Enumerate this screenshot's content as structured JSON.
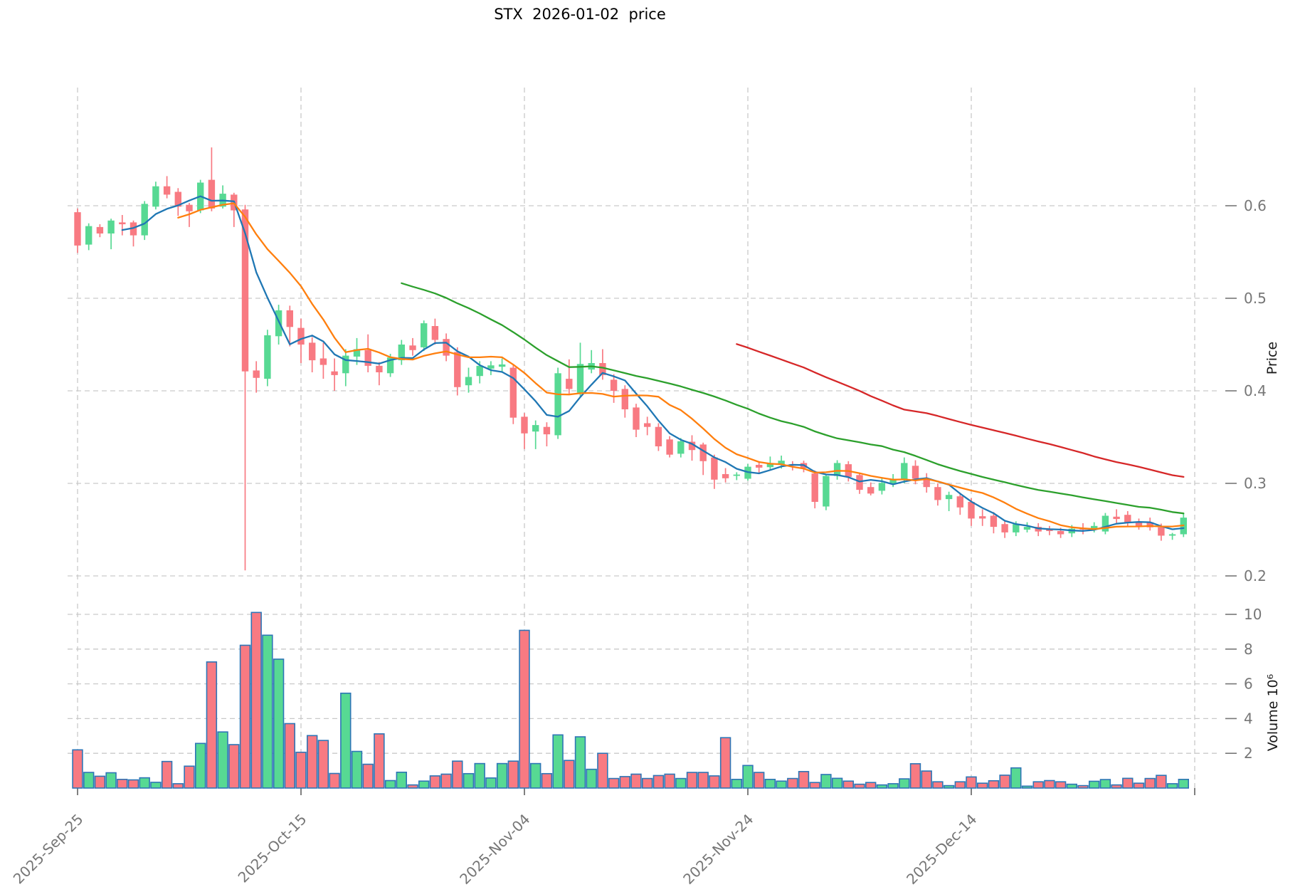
{
  "title": "STX  2026-01-02  price",
  "axes": {
    "price": {
      "label": "Price",
      "ticks": [
        0.2,
        0.3,
        0.4,
        0.5,
        0.6
      ]
    },
    "volume": {
      "label": "Volume 10⁶",
      "ticks": [
        2,
        4,
        6,
        8,
        10
      ]
    },
    "x": {
      "ticks": [
        {
          "index": 0,
          "label": "2025-Sep-25"
        },
        {
          "index": 20,
          "label": "2025-Oct-15"
        },
        {
          "index": 40,
          "label": "2025-Nov-04"
        },
        {
          "index": 60,
          "label": "2025-Nov-24"
        },
        {
          "index": 80,
          "label": "2025-Dec-14"
        },
        {
          "index": 100,
          "label": ""
        }
      ]
    }
  },
  "colors": {
    "background": "#ffffff",
    "candle_up": "#57d993",
    "candle_down": "#f87a82",
    "volume_edge": "#2e75b6",
    "grid": "#c9c9c9",
    "tick_label": "#767676",
    "tick_mark": "#555555",
    "axis_label": "#1a1a1a",
    "title": "#000000",
    "ma_colors": [
      "#1f77b4",
      "#ff7f0e",
      "#2ca02c",
      "#d62728"
    ]
  },
  "chart_data": {
    "type": "candlestick",
    "symbol": "STX",
    "title": "STX  2026-01-02  price",
    "ylabel": "Price",
    "y2label": "Volume 10⁶",
    "volume_unit": 1000000,
    "grid": true,
    "price_ylim": [
      0.185,
      0.69
    ],
    "volume_ylim": [
      0,
      10.6
    ],
    "moving_averages": [
      {
        "window": 5,
        "color": "#1f77b4"
      },
      {
        "window": 10,
        "color": "#ff7f0e"
      },
      {
        "window": 30,
        "color": "#2ca02c"
      },
      {
        "window": 60,
        "color": "#d62728"
      }
    ],
    "dates": [
      "2025-09-25",
      "2025-09-26",
      "2025-09-27",
      "2025-09-28",
      "2025-09-29",
      "2025-09-30",
      "2025-10-01",
      "2025-10-02",
      "2025-10-03",
      "2025-10-04",
      "2025-10-05",
      "2025-10-06",
      "2025-10-07",
      "2025-10-08",
      "2025-10-09",
      "2025-10-10",
      "2025-10-11",
      "2025-10-12",
      "2025-10-13",
      "2025-10-14",
      "2025-10-15",
      "2025-10-16",
      "2025-10-17",
      "2025-10-18",
      "2025-10-19",
      "2025-10-20",
      "2025-10-21",
      "2025-10-22",
      "2025-10-23",
      "2025-10-24",
      "2025-10-25",
      "2025-10-26",
      "2025-10-27",
      "2025-10-28",
      "2025-10-29",
      "2025-10-30",
      "2025-10-31",
      "2025-11-01",
      "2025-11-02",
      "2025-11-03",
      "2025-11-04",
      "2025-11-05",
      "2025-11-06",
      "2025-11-07",
      "2025-11-08",
      "2025-11-09",
      "2025-11-10",
      "2025-11-11",
      "2025-11-12",
      "2025-11-13",
      "2025-11-14",
      "2025-11-15",
      "2025-11-16",
      "2025-11-17",
      "2025-11-18",
      "2025-11-19",
      "2025-11-20",
      "2025-11-21",
      "2025-11-22",
      "2025-11-23",
      "2025-11-24",
      "2025-11-25",
      "2025-11-26",
      "2025-11-27",
      "2025-11-28",
      "2025-11-29",
      "2025-11-30",
      "2025-12-01",
      "2025-12-02",
      "2025-12-03",
      "2025-12-04",
      "2025-12-05",
      "2025-12-06",
      "2025-12-07",
      "2025-12-08",
      "2025-12-09",
      "2025-12-10",
      "2025-12-11",
      "2025-12-12",
      "2025-12-13",
      "2025-12-14",
      "2025-12-15",
      "2025-12-16",
      "2025-12-17",
      "2025-12-18",
      "2025-12-19",
      "2025-12-20",
      "2025-12-21",
      "2025-12-22",
      "2025-12-23",
      "2025-12-24",
      "2025-12-25",
      "2025-12-26",
      "2025-12-27",
      "2025-12-28",
      "2025-12-29",
      "2025-12-30",
      "2025-12-31",
      "2026-01-01",
      "2026-01-02"
    ],
    "open": [
      0.593,
      0.558,
      0.577,
      0.57,
      0.582,
      0.582,
      0.568,
      0.599,
      0.621,
      0.615,
      0.601,
      0.595,
      0.628,
      0.599,
      0.612,
      0.596,
      0.422,
      0.413,
      0.459,
      0.487,
      0.468,
      0.452,
      0.435,
      0.421,
      0.419,
      0.437,
      0.444,
      0.427,
      0.419,
      0.433,
      0.449,
      0.447,
      0.47,
      0.456,
      0.442,
      0.406,
      0.416,
      0.424,
      0.426,
      0.425,
      0.372,
      0.356,
      0.361,
      0.352,
      0.413,
      0.398,
      0.423,
      0.43,
      0.412,
      0.402,
      0.382,
      0.365,
      0.361,
      0.3475,
      0.332,
      0.345,
      0.342,
      0.328,
      0.31,
      0.3085,
      0.305,
      0.32,
      0.3175,
      0.32,
      0.3207,
      0.322,
      0.3107,
      0.275,
      0.308,
      0.3207,
      0.309,
      0.296,
      0.292,
      0.3,
      0.304,
      0.319,
      0.305,
      0.296,
      0.283,
      0.286,
      0.28,
      0.2645,
      0.265,
      0.256,
      0.247,
      0.25,
      0.253,
      0.25,
      0.2485,
      0.246,
      0.2515,
      0.251,
      0.248,
      0.264,
      0.266,
      0.258,
      0.258,
      0.2525,
      0.2435,
      0.245
    ],
    "high": [
      0.597,
      0.581,
      0.58,
      0.586,
      0.59,
      0.584,
      0.605,
      0.626,
      0.632,
      0.619,
      0.603,
      0.628,
      0.663,
      0.622,
      0.614,
      0.601,
      0.432,
      0.466,
      0.493,
      0.492,
      0.478,
      0.458,
      0.452,
      0.435,
      0.445,
      0.457,
      0.461,
      0.431,
      0.44,
      0.455,
      0.457,
      0.476,
      0.478,
      0.462,
      0.447,
      0.425,
      0.432,
      0.432,
      0.435,
      0.428,
      0.376,
      0.368,
      0.366,
      0.425,
      0.434,
      0.452,
      0.444,
      0.445,
      0.418,
      0.406,
      0.386,
      0.372,
      0.365,
      0.351,
      0.349,
      0.352,
      0.344,
      0.331,
      0.3165,
      0.312,
      0.321,
      0.324,
      0.329,
      0.33,
      0.324,
      0.3245,
      0.314,
      0.31,
      0.325,
      0.324,
      0.311,
      0.301,
      0.306,
      0.31,
      0.328,
      0.325,
      0.311,
      0.3,
      0.291,
      0.29,
      0.284,
      0.272,
      0.269,
      0.26,
      0.259,
      0.258,
      0.257,
      0.254,
      0.252,
      0.255,
      0.257,
      0.258,
      0.268,
      0.272,
      0.27,
      0.262,
      0.263,
      0.2565,
      0.2465,
      0.267
    ],
    "low": [
      0.549,
      0.552,
      0.566,
      0.553,
      0.568,
      0.556,
      0.563,
      0.596,
      0.608,
      0.589,
      0.577,
      0.592,
      0.594,
      0.597,
      0.577,
      0.206,
      0.398,
      0.405,
      0.45,
      0.448,
      0.43,
      0.42,
      0.413,
      0.4,
      0.405,
      0.428,
      0.42,
      0.406,
      0.415,
      0.428,
      0.438,
      0.443,
      0.45,
      0.432,
      0.395,
      0.398,
      0.408,
      0.417,
      0.42,
      0.364,
      0.337,
      0.337,
      0.34,
      0.348,
      0.397,
      0.394,
      0.419,
      0.412,
      0.387,
      0.371,
      0.35,
      0.352,
      0.335,
      0.328,
      0.328,
      0.3245,
      0.309,
      0.294,
      0.301,
      0.3035,
      0.303,
      0.3105,
      0.3145,
      0.316,
      0.314,
      0.312,
      0.273,
      0.271,
      0.304,
      0.302,
      0.2886,
      0.287,
      0.288,
      0.296,
      0.3,
      0.299,
      0.29,
      0.276,
      0.27,
      0.266,
      0.254,
      0.254,
      0.246,
      0.241,
      0.243,
      0.247,
      0.243,
      0.244,
      0.241,
      0.242,
      0.245,
      0.247,
      0.245,
      0.257,
      0.253,
      0.25,
      0.249,
      0.238,
      0.239,
      0.242
    ],
    "close": [
      0.557,
      0.578,
      0.57,
      0.584,
      0.58,
      0.568,
      0.602,
      0.621,
      0.612,
      0.599,
      0.594,
      0.625,
      0.597,
      0.613,
      0.595,
      0.421,
      0.414,
      0.46,
      0.487,
      0.469,
      0.45,
      0.433,
      0.428,
      0.417,
      0.438,
      0.445,
      0.427,
      0.42,
      0.436,
      0.45,
      0.444,
      0.473,
      0.455,
      0.438,
      0.404,
      0.415,
      0.427,
      0.4275,
      0.4285,
      0.371,
      0.354,
      0.363,
      0.353,
      0.419,
      0.402,
      0.429,
      0.43,
      0.417,
      0.4,
      0.38,
      0.358,
      0.361,
      0.34,
      0.331,
      0.3455,
      0.336,
      0.324,
      0.304,
      0.3055,
      0.3095,
      0.318,
      0.317,
      0.322,
      0.3245,
      0.319,
      0.3165,
      0.28,
      0.308,
      0.322,
      0.307,
      0.293,
      0.289,
      0.3005,
      0.305,
      0.322,
      0.305,
      0.296,
      0.282,
      0.2875,
      0.274,
      0.262,
      0.262,
      0.253,
      0.247,
      0.256,
      0.253,
      0.248,
      0.2485,
      0.245,
      0.251,
      0.2505,
      0.254,
      0.265,
      0.2615,
      0.257,
      0.254,
      0.2525,
      0.2435,
      0.245,
      0.263
    ],
    "volume_millions": [
      2.2,
      0.9,
      0.68,
      0.88,
      0.5,
      0.47,
      0.59,
      0.33,
      1.53,
      0.25,
      1.26,
      2.57,
      7.26,
      3.23,
      2.5,
      8.22,
      10.11,
      8.8,
      7.42,
      3.71,
      2.06,
      3.02,
      2.74,
      0.84,
      5.46,
      2.11,
      1.37,
      3.12,
      0.43,
      0.91,
      0.18,
      0.4,
      0.7,
      0.8,
      1.55,
      0.83,
      1.41,
      0.58,
      1.41,
      1.55,
      9.08,
      1.41,
      0.83,
      3.06,
      1.59,
      2.95,
      1.08,
      2.0,
      0.55,
      0.66,
      0.8,
      0.55,
      0.72,
      0.8,
      0.55,
      0.9,
      0.9,
      0.7,
      2.9,
      0.5,
      1.3,
      0.9,
      0.5,
      0.4,
      0.55,
      0.95,
      0.32,
      0.78,
      0.56,
      0.4,
      0.22,
      0.32,
      0.18,
      0.25,
      0.53,
      1.4,
      0.98,
      0.36,
      0.14,
      0.36,
      0.64,
      0.28,
      0.42,
      0.74,
      1.16,
      0.11,
      0.36,
      0.43,
      0.36,
      0.22,
      0.14,
      0.39,
      0.49,
      0.18,
      0.56,
      0.28,
      0.55,
      0.73,
      0.25,
      0.5
    ]
  }
}
